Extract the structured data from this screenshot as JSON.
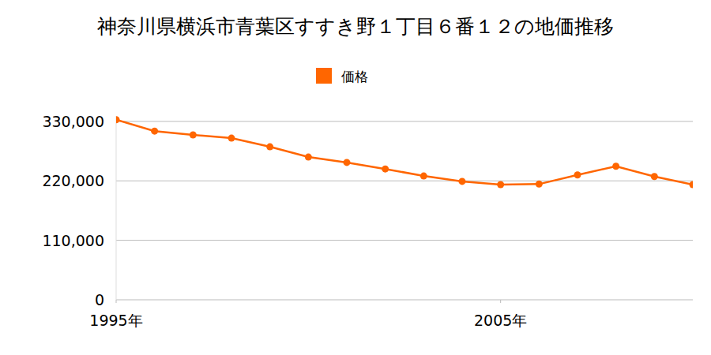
{
  "chart_data": {
    "type": "line",
    "title": "神奈川県横浜市青葉区すすき野１丁目６番１２の地価推移",
    "x": [
      1995,
      1996,
      1997,
      1998,
      1999,
      2000,
      2001,
      2002,
      2003,
      2004,
      2005,
      2006,
      2007,
      2008,
      2009,
      2010
    ],
    "series": [
      {
        "name": "価格",
        "color": "#ff6600",
        "marker": "circle",
        "values": [
          333000,
          312000,
          305000,
          299000,
          283000,
          264000,
          254000,
          242000,
          229000,
          219000,
          213000,
          214000,
          231000,
          247000,
          228000,
          213000
        ]
      }
    ],
    "xlim": [
      1995,
      2010
    ],
    "xticks": [
      {
        "value": 1995,
        "label": "1995年"
      },
      {
        "value": 2005,
        "label": "2005年"
      }
    ],
    "ylim": [
      0,
      340000
    ],
    "yticks": [
      0,
      {
        "value": 110000,
        "label": "110,000"
      },
      {
        "value": 220000,
        "label": "220,000"
      },
      {
        "value": 330000,
        "label": "330,000"
      }
    ],
    "grid": true,
    "legend": "top"
  }
}
